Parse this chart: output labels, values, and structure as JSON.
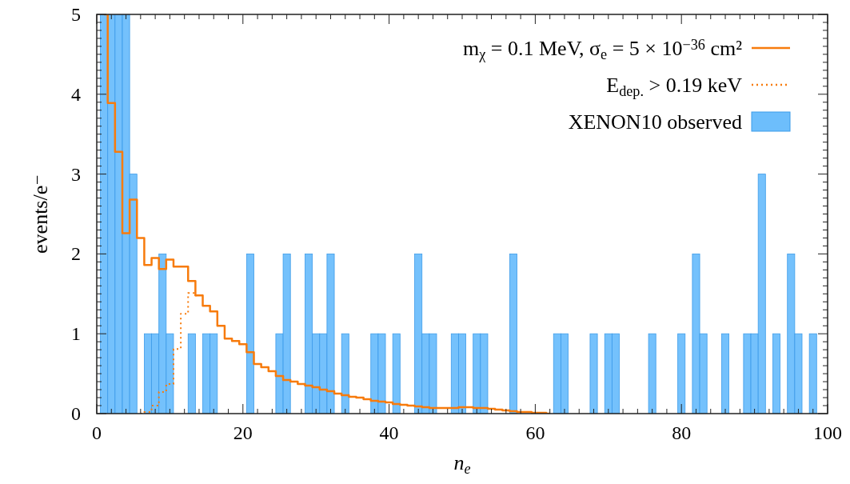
{
  "chart_data": {
    "type": "histogram",
    "xlabel": "n$_{e}$",
    "ylabel": "events/e⁻",
    "xlim": [
      0,
      100
    ],
    "ylim": [
      0,
      5
    ],
    "xticks": [
      0,
      20,
      40,
      60,
      80,
      100
    ],
    "yticks": [
      0,
      1,
      2,
      3,
      4,
      5
    ],
    "grid": false,
    "legend": "top right",
    "bins": [
      0.5,
      1.5,
      2.5,
      3.5,
      4.5,
      5.5,
      6.5,
      7.5,
      8.5,
      9.5,
      10.5,
      11.5,
      12.5,
      13.5,
      14.5,
      15.5,
      16.5,
      17.5,
      18.5,
      19.5,
      20.5,
      21.5,
      22.5,
      23.5,
      24.5,
      25.5,
      26.5,
      27.5,
      28.5,
      29.5,
      30.5,
      31.5,
      32.5,
      33.5,
      34.5,
      35.5,
      36.5,
      37.5,
      38.5,
      39.5,
      40.5,
      41.5,
      42.5,
      43.5,
      44.5,
      45.5,
      46.5,
      47.5,
      48.5,
      49.5,
      50.5,
      51.5,
      52.5,
      53.5,
      54.5,
      55.5,
      56.5,
      57.5,
      58.5,
      59.5,
      60.5,
      61.5,
      62.5,
      63.5,
      64.5,
      65.5,
      66.5,
      67.5,
      68.5,
      69.5,
      70.5,
      71.5,
      72.5,
      73.5,
      74.5,
      75.5,
      76.5,
      77.5,
      78.5,
      79.5,
      80.5,
      81.5,
      82.5,
      83.5,
      84.5,
      85.5,
      86.5,
      87.5,
      88.5,
      89.5,
      90.5,
      91.5,
      92.5,
      93.5,
      94.5,
      95.5,
      96.5,
      97.5,
      98.5,
      99.5
    ],
    "series": [
      {
        "type": "step",
        "name": "m$_{χ}$ = 0.1 MeV,  σ$_{e}$ = 5 × 10$^{−36}$ cm²",
        "color": "#f77b0c",
        "line_style": "solid",
        "x": [
          1,
          2,
          3,
          4,
          5,
          6,
          7,
          8,
          9,
          10,
          11,
          12,
          13,
          14,
          15,
          16,
          17,
          18,
          19,
          20,
          21,
          22,
          23,
          24,
          25,
          26,
          27,
          28,
          29,
          30,
          31,
          32,
          33,
          34,
          35,
          36,
          37,
          38,
          39,
          40,
          41,
          42,
          43,
          44,
          45,
          46,
          47,
          48,
          49,
          50,
          51,
          52,
          53,
          54,
          55,
          56,
          57,
          58,
          59,
          60,
          61,
          62
        ],
        "values": [
          5,
          3.89,
          3.28,
          2.26,
          2.68,
          2.2,
          1.86,
          1.95,
          1.81,
          1.93,
          1.84,
          1.84,
          1.66,
          1.48,
          1.35,
          1.28,
          1.1,
          0.94,
          0.91,
          0.87,
          0.77,
          0.62,
          0.58,
          0.53,
          0.47,
          0.42,
          0.4,
          0.37,
          0.35,
          0.33,
          0.3,
          0.28,
          0.25,
          0.23,
          0.21,
          0.2,
          0.18,
          0.16,
          0.15,
          0.14,
          0.12,
          0.11,
          0.1,
          0.09,
          0.08,
          0.07,
          0.07,
          0.07,
          0.07,
          0.08,
          0.08,
          0.07,
          0.07,
          0.06,
          0.05,
          0.04,
          0.03,
          0.02,
          0.02,
          0.01,
          0.01,
          0
        ]
      },
      {
        "type": "step",
        "name": "E$_{dep.}$ > 0.19 keV",
        "color": "#f77b0c",
        "line_style": "dotted",
        "x": [
          6,
          7,
          8,
          9,
          10,
          11,
          12,
          13,
          14
        ],
        "values": [
          0,
          0.02,
          0.1,
          0.27,
          0.37,
          0.81,
          1.25,
          1.51,
          1.48
        ]
      },
      {
        "name": "XENON10 observed",
        "color": "#6dbefc",
        "values": [
          5,
          5,
          5,
          5,
          3,
          0,
          1,
          1,
          2,
          1,
          0,
          0,
          1,
          0,
          1,
          1,
          0,
          0,
          0,
          0,
          2,
          0,
          0,
          0,
          1,
          2,
          0,
          0,
          2,
          1,
          1,
          2,
          0,
          1,
          0,
          0,
          0,
          1,
          1,
          0,
          1,
          0,
          0,
          2,
          1,
          1,
          0,
          0,
          1,
          1,
          0,
          1,
          1,
          0,
          0,
          0,
          2,
          0,
          0,
          0,
          0,
          0,
          1,
          1,
          0,
          0,
          0,
          1,
          0,
          1,
          1,
          0,
          0,
          0,
          0,
          1,
          0,
          0,
          0,
          1,
          0,
          2,
          1,
          0,
          0,
          1,
          0,
          0,
          1,
          1,
          3,
          0,
          1,
          0,
          2,
          1,
          0,
          1,
          0
        ]
      }
    ]
  }
}
